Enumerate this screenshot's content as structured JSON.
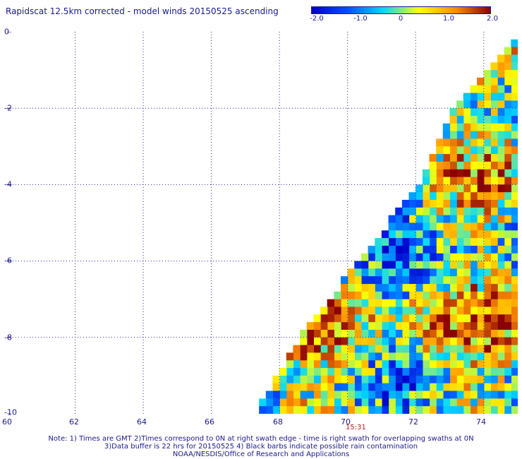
{
  "header": {
    "title": "Rapidscat 12.5km corrected - model winds 20150525 ascending"
  },
  "colorbar": {
    "labels": [
      "-2.0",
      "-1.0",
      "0",
      "1.0",
      "2.0"
    ],
    "colors": [
      "#0000c8",
      "#0050ff",
      "#00d8ff",
      "#ffff00",
      "#ff9000",
      "#8b0000"
    ]
  },
  "axes": {
    "x_ticks": [
      "60",
      "62",
      "64",
      "66",
      "68",
      "70",
      "72",
      "74"
    ],
    "y_ticks": [
      "0",
      "-2",
      "-4",
      "-6",
      "-8",
      "-10"
    ]
  },
  "time_label": "15:31",
  "notes": {
    "line1": "Note: 1) Times are GMT 2)Times correspond to 0N at right swath edge - time is right swath for overlapping swaths at 0N",
    "line2": "3)Data buffer is 22 hrs for 20150525 4) Black barbs indicate possible rain contamination",
    "line3": "NOAA/NESDIS/Office of Research and Applications"
  },
  "map_data": {
    "lon_range": [
      60,
      75
    ],
    "lat_range": [
      -10,
      0
    ],
    "value_range": [
      -2.0,
      2.0
    ],
    "swath_edge": [
      [
        75,
        0
      ],
      [
        73.0,
        -2.0
      ],
      [
        72.0,
        -4.0
      ],
      [
        70.2,
        -6.0
      ],
      [
        68.5,
        -8.0
      ],
      [
        67.2,
        -10.0
      ]
    ]
  }
}
